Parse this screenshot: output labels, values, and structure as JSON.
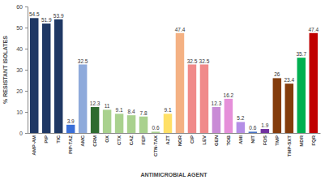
{
  "chart_data": {
    "type": "bar",
    "x_label": "ANTIMICROBIAL AGENT",
    "y_label": "% RESISTANT ISOLATES",
    "categories": [
      "AMP-AM",
      "PIP",
      "TIC",
      "PIP-TAZ",
      "AMC",
      "CRM",
      "OX",
      "CTX",
      "CAZ",
      "FEP",
      "CTN-TAX",
      "AZT",
      "NOR",
      "CIP",
      "LEV",
      "GEN",
      "TOB",
      "AMI",
      "NIT",
      "FOS",
      "TMP",
      "TMP-SXT",
      "MDR",
      "FQR"
    ],
    "values": [
      54.5,
      51.9,
      53.9,
      3.9,
      32.5,
      12.3,
      11,
      9.1,
      8.4,
      7.8,
      0.6,
      9.1,
      47.4,
      32.5,
      32.5,
      12.3,
      16.2,
      5.2,
      0.6,
      1.9,
      26,
      23.4,
      35.7,
      47.4
    ],
    "colors": [
      "#1f3864",
      "#1f3864",
      "#1f3864",
      "#3a6fd8",
      "#8eaadb",
      "#2e6b30",
      "#a9d18e",
      "#a9d18e",
      "#a9d18e",
      "#a9d18e",
      "#a9d18e",
      "#ffe066",
      "#f4b183",
      "#f08a8a",
      "#f08a8a",
      "#c98bd6",
      "#e58fd9",
      "#b48ee6",
      "#4472c4",
      "#7030a0",
      "#843c0c",
      "#843c0c",
      "#00b050",
      "#c00000"
    ],
    "ylim": [
      0,
      60
    ],
    "yticks": [
      0,
      10,
      20,
      30,
      40,
      50,
      60
    ],
    "data_labels": true,
    "grid": false
  }
}
